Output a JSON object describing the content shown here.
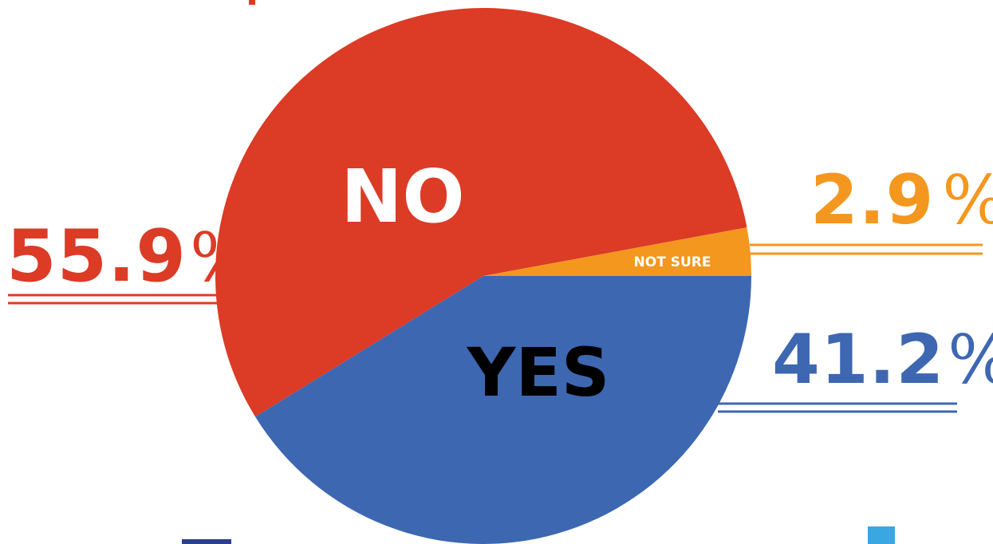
{
  "chart_data": {
    "type": "pie",
    "slices": [
      {
        "label": "NO",
        "value": 55.9,
        "value_label": "55.9",
        "percent_sign": "%",
        "color": "#dc3b26",
        "label_color": "#ffffff"
      },
      {
        "label": "NOT SURE",
        "value": 2.9,
        "value_label": "2.9",
        "percent_sign": "%",
        "color": "#f4971e",
        "label_color": "#ffffff"
      },
      {
        "label": "YES",
        "value": 41.2,
        "value_label": "41.2",
        "percent_sign": "%",
        "color": "#3d67b1",
        "label_color": "#000000"
      }
    ],
    "start_angle_deg": 0,
    "direction": "counterclockwise",
    "legend": "none"
  }
}
